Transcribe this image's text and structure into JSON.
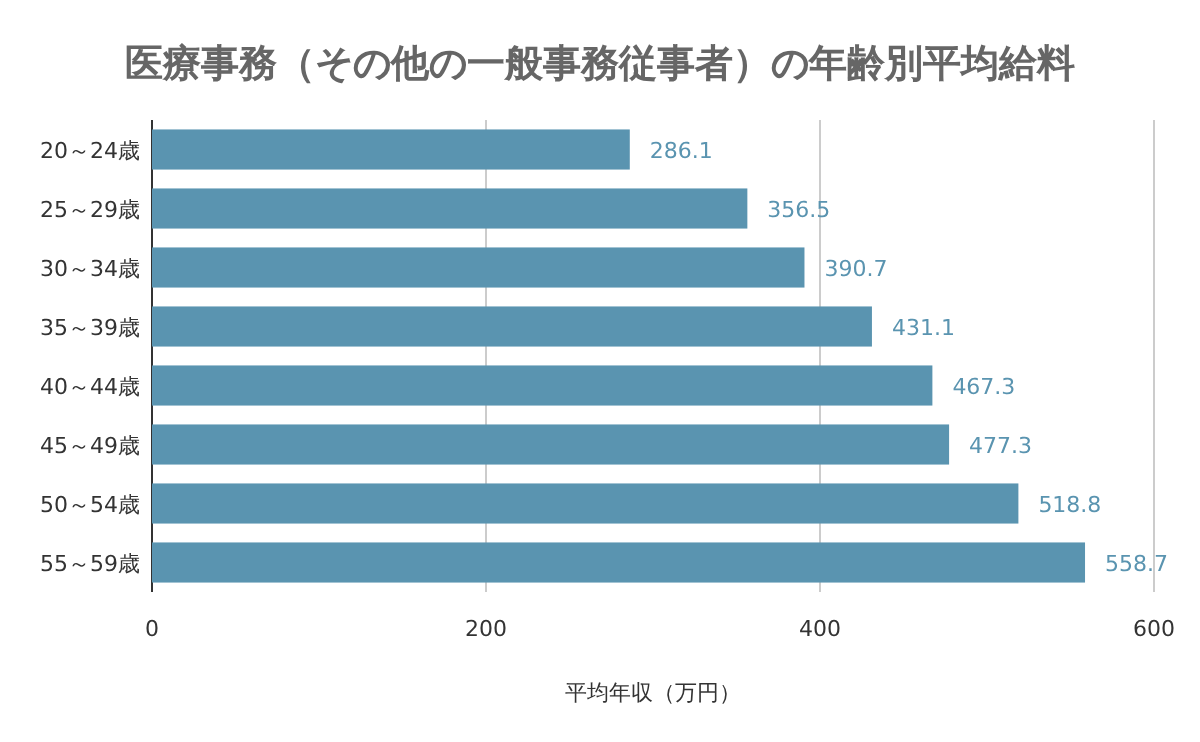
{
  "chart_data": {
    "type": "bar",
    "orientation": "horizontal",
    "title": "医療事務（その他の一般事務従事者）の年齢別平均給料",
    "xlabel": "平均年収（万円）",
    "categories": [
      "20～24歳",
      "25～29歳",
      "30～34歳",
      "35～39歳",
      "40～44歳",
      "45～49歳",
      "50～54歳",
      "55～59歳"
    ],
    "series": [
      {
        "color": "#5a94b0",
        "values": [
          286.1,
          356.5,
          390.7,
          431.1,
          467.3,
          477.3,
          518.8,
          558.7
        ]
      }
    ],
    "xlim": [
      0,
      600
    ],
    "xticks": [
      0,
      200,
      400,
      600
    ],
    "grid": "x",
    "data_labels": true
  }
}
